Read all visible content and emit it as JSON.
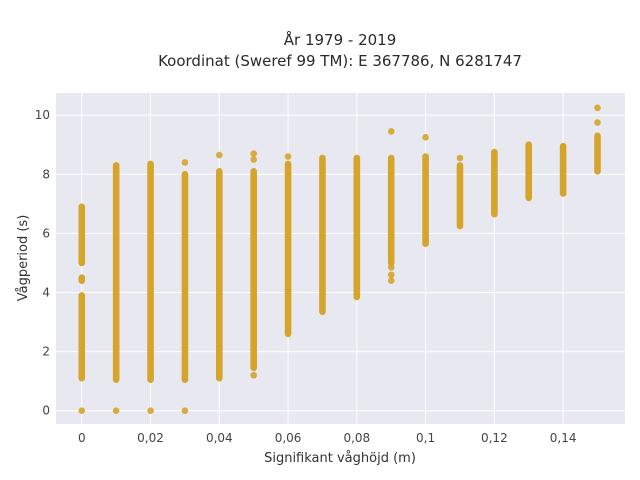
{
  "chart_data": {
    "type": "scatter",
    "title_line1": "År 1979 - 2019",
    "title_line2": "Koordinat (Sweref 99 TM): E 367786, N 6281747",
    "xlabel": "Signifikant våghöjd (m)",
    "ylabel": "Vågperiod (s)",
    "xlim": [
      -0.0075,
      0.158
    ],
    "ylim": [
      -0.45,
      10.75
    ],
    "x_ticks": [
      0,
      0.02,
      0.04,
      0.06,
      0.08,
      0.1,
      0.12,
      0.14
    ],
    "x_tick_labels": [
      "0",
      "0,02",
      "0,04",
      "0,06",
      "0,08",
      "0,1",
      "0,12",
      "0,14"
    ],
    "y_ticks": [
      0,
      2,
      4,
      6,
      8,
      10
    ],
    "y_tick_labels": [
      "0",
      "2",
      "4",
      "6",
      "8",
      "10"
    ],
    "grid": true,
    "point_color": "#d4a020",
    "background_color": "#e8e8f0",
    "columns": [
      {
        "x": 0,
        "ranges": [
          [
            1.1,
            3.9
          ],
          [
            4.4,
            4.5
          ],
          [
            5.0,
            6.9
          ]
        ],
        "points": [
          0
        ]
      },
      {
        "x": 0.01,
        "ranges": [
          [
            1.05,
            8.3
          ]
        ],
        "points": [
          0
        ]
      },
      {
        "x": 0.02,
        "ranges": [
          [
            1.05,
            8.35
          ]
        ],
        "points": [
          0
        ]
      },
      {
        "x": 0.03,
        "ranges": [
          [
            1.05,
            8.0
          ]
        ],
        "points": [
          8.4,
          0
        ]
      },
      {
        "x": 0.04,
        "ranges": [
          [
            1.1,
            8.1
          ]
        ],
        "points": [
          8.65
        ]
      },
      {
        "x": 0.05,
        "ranges": [
          [
            1.45,
            8.1
          ]
        ],
        "points": [
          1.2,
          8.5,
          8.7
        ]
      },
      {
        "x": 0.06,
        "ranges": [
          [
            2.6,
            8.35
          ]
        ],
        "points": [
          8.6
        ]
      },
      {
        "x": 0.07,
        "ranges": [
          [
            3.35,
            8.55
          ]
        ],
        "points": []
      },
      {
        "x": 0.08,
        "ranges": [
          [
            3.85,
            8.55
          ]
        ],
        "points": []
      },
      {
        "x": 0.09,
        "ranges": [
          [
            5.0,
            8.55
          ]
        ],
        "points": [
          4.4,
          4.6,
          4.85,
          9.45
        ]
      },
      {
        "x": 0.1,
        "ranges": [
          [
            5.65,
            8.6
          ]
        ],
        "points": [
          9.25
        ]
      },
      {
        "x": 0.11,
        "ranges": [
          [
            6.25,
            8.3
          ]
        ],
        "points": [
          8.55
        ]
      },
      {
        "x": 0.12,
        "ranges": [
          [
            6.65,
            8.75
          ]
        ],
        "points": []
      },
      {
        "x": 0.13,
        "ranges": [
          [
            7.2,
            9.0
          ]
        ],
        "points": []
      },
      {
        "x": 0.14,
        "ranges": [
          [
            7.35,
            8.95
          ]
        ],
        "points": []
      },
      {
        "x": 0.15,
        "ranges": [
          [
            8.1,
            9.3
          ]
        ],
        "points": [
          9.75,
          10.25
        ]
      }
    ]
  }
}
